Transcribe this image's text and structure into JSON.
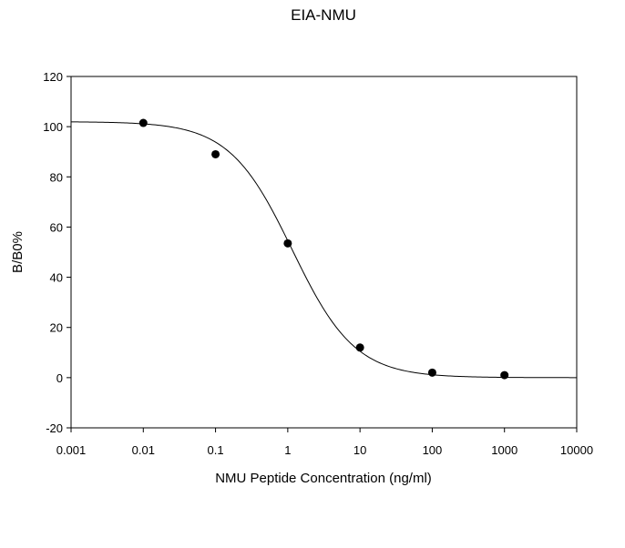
{
  "chart_data": {
    "type": "scatter",
    "title": "EIA-NMU",
    "xlabel": "NMU Peptide Concentration (ng/ml)",
    "ylabel": "B/B0%",
    "xscale": "log",
    "xlim": [
      0.001,
      10000
    ],
    "ylim": [
      -20,
      120
    ],
    "xticks": [
      "0.001",
      "0.01",
      "0.1",
      "1",
      "10",
      "100",
      "1000",
      "10000"
    ],
    "yticks": [
      "-20",
      "0",
      "20",
      "40",
      "60",
      "80",
      "100",
      "120"
    ],
    "grid": false,
    "legend": "none",
    "series": [
      {
        "points": [
          {
            "x": 0.01,
            "y": 101.5
          },
          {
            "x": 0.1,
            "y": 89
          },
          {
            "x": 1,
            "y": 53.5
          },
          {
            "x": 10,
            "y": 12
          },
          {
            "x": 100,
            "y": 2
          },
          {
            "x": 1000,
            "y": 1
          }
        ],
        "fit": {
          "type": "4PL",
          "top": 102,
          "bottom": 0,
          "ec50": 1.15,
          "hill": 1.0
        }
      }
    ]
  }
}
